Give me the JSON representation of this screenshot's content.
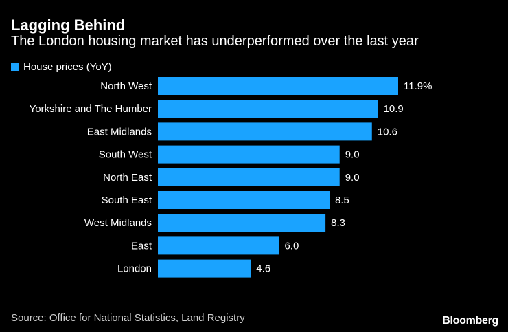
{
  "title": "Lagging Behind",
  "subtitle": "The London housing market has underperformed over the last year",
  "source": "Source: Office for National Statistics, Land Registry",
  "brand": "Bloomberg",
  "colors": {
    "bar": "#1aa3ff",
    "background": "#000000",
    "text": "#ffffff"
  },
  "chart_data": {
    "type": "bar",
    "orientation": "horizontal",
    "legend": [
      "House prices (YoY)"
    ],
    "categories": [
      "North West",
      "Yorkshire and The Humber",
      "East Midlands",
      "South West",
      "North East",
      "South East",
      "West Midlands",
      "East",
      "London"
    ],
    "values": [
      11.9,
      10.9,
      10.6,
      9.0,
      9.0,
      8.5,
      8.3,
      6.0,
      4.6
    ],
    "value_labels": [
      "11.9%",
      "10.9",
      "10.6",
      "9.0",
      "9.0",
      "8.5",
      "8.3",
      "6.0",
      "4.6"
    ],
    "xlim": [
      0,
      11.9
    ],
    "xlabel": "",
    "ylabel": ""
  }
}
